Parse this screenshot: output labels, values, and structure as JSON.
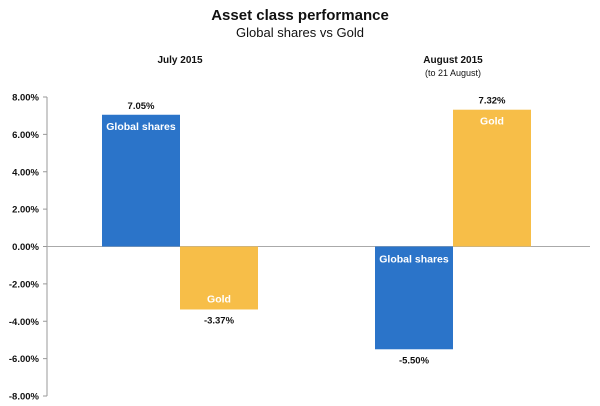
{
  "chart_data": {
    "type": "bar",
    "title": "Asset class performance",
    "subtitle": "Global shares vs Gold",
    "categories": [
      {
        "label": "July 2015",
        "sublabel": ""
      },
      {
        "label": "August 2015",
        "sublabel": "(to 21 August)"
      }
    ],
    "series": [
      {
        "key": "shares",
        "in_bar_label": "Global shares",
        "color": "#2b74c9",
        "values": [
          7.05,
          -5.5
        ],
        "value_labels": [
          "7.05%",
          "-5.50%"
        ]
      },
      {
        "key": "gold",
        "in_bar_label": "Gold",
        "color": "#f7be48",
        "values": [
          -3.37,
          7.32
        ],
        "value_labels": [
          "-3.37%",
          "7.32%"
        ]
      }
    ],
    "yticks": [
      8,
      6,
      4,
      2,
      0,
      -2,
      -4,
      -6,
      -8
    ],
    "ytick_labels": [
      "8.00%",
      "6.00%",
      "4.00%",
      "2.00%",
      "0.00%",
      "-2.00%",
      "-4.00%",
      "-6.00%",
      "-8.00%"
    ],
    "ylim": [
      -8,
      8
    ],
    "grid": false,
    "legend": "none"
  }
}
